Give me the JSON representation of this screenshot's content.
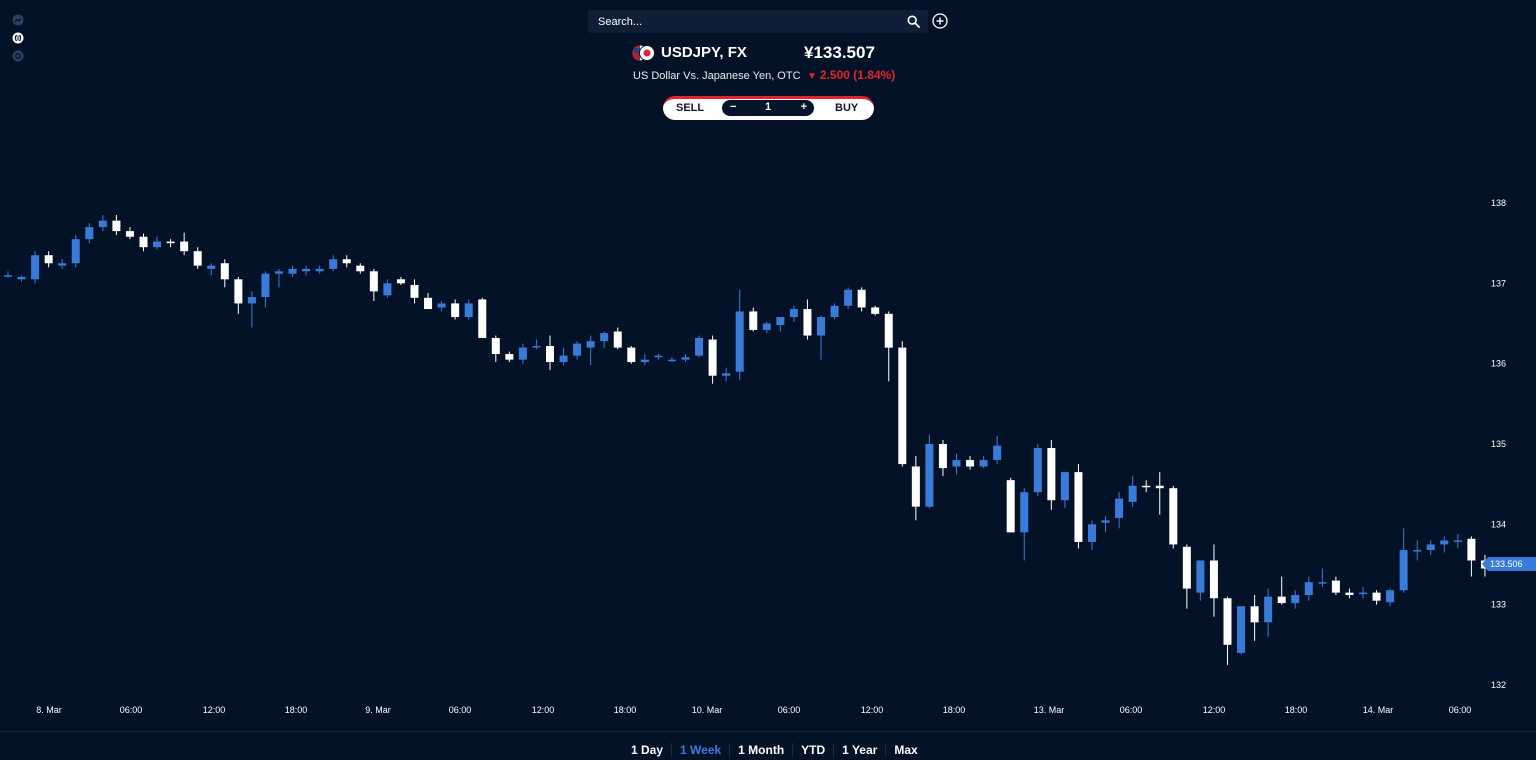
{
  "sidebar": {
    "icons": [
      {
        "name": "chart-style-icon",
        "color": "#2c4260"
      },
      {
        "name": "indicator-icon",
        "color": "#ffffff"
      },
      {
        "name": "settings-icon",
        "color": "#2c4260"
      }
    ]
  },
  "search": {
    "placeholder": "Search..."
  },
  "instrument": {
    "symbol": "USDJPY, FX",
    "description": "US Dollar Vs. Japanese Yen, OTC",
    "price": "¥133.507",
    "change_arrow": "▼",
    "change": "2.500 (1.84%)",
    "flag_icon": "us-jp-flag-icon"
  },
  "trade": {
    "sell_label": "SELL",
    "buy_label": "BUY",
    "minus": "−",
    "plus": "+",
    "quantity": "1"
  },
  "chart_data": {
    "type": "candlestick",
    "symbol": "USDJPY",
    "y_ticks": [
      "138",
      "137",
      "136",
      "135",
      "134",
      "133",
      "132"
    ],
    "ylim": [
      131.8,
      138.3
    ],
    "x_labels": [
      "8. Mar",
      "06:00",
      "12:00",
      "18:00",
      "9. Mar",
      "06:00",
      "12:00",
      "18:00",
      "10. Mar",
      "06:00",
      "12:00",
      "18:00",
      "13. Mar",
      "06:00",
      "12:00",
      "18:00",
      "14. Mar",
      "06:00"
    ],
    "current_price": "133.506",
    "colors": {
      "up": "#3a7ad8",
      "down": "#ffffff",
      "background": "#041228",
      "price_tag": "#3a7ad8"
    },
    "candles": [
      [
        137.1,
        137.15,
        137.07,
        137.1
      ],
      [
        137.05,
        137.1,
        137.02,
        137.08
      ],
      [
        137.05,
        137.4,
        137.0,
        137.35
      ],
      [
        137.35,
        137.4,
        137.2,
        137.25
      ],
      [
        137.22,
        137.3,
        137.18,
        137.25
      ],
      [
        137.25,
        137.6,
        137.2,
        137.55
      ],
      [
        137.55,
        137.75,
        137.5,
        137.7
      ],
      [
        137.7,
        137.85,
        137.65,
        137.78
      ],
      [
        137.78,
        137.85,
        137.6,
        137.65
      ],
      [
        137.65,
        137.7,
        137.55,
        137.58
      ],
      [
        137.58,
        137.62,
        137.4,
        137.45
      ],
      [
        137.45,
        137.58,
        137.42,
        137.52
      ],
      [
        137.52,
        137.55,
        137.45,
        137.5
      ],
      [
        137.52,
        137.63,
        137.35,
        137.4
      ],
      [
        137.4,
        137.45,
        137.18,
        137.22
      ],
      [
        137.18,
        137.25,
        137.1,
        137.22
      ],
      [
        137.25,
        137.3,
        136.95,
        137.05
      ],
      [
        137.05,
        137.08,
        136.62,
        136.75
      ],
      [
        136.75,
        136.9,
        136.45,
        136.83
      ],
      [
        136.83,
        137.15,
        136.7,
        137.12
      ],
      [
        137.12,
        137.18,
        136.95,
        137.15
      ],
      [
        137.12,
        137.22,
        137.08,
        137.18
      ],
      [
        137.15,
        137.22,
        137.1,
        137.18
      ],
      [
        137.15,
        137.22,
        137.12,
        137.18
      ],
      [
        137.18,
        137.35,
        137.15,
        137.3
      ],
      [
        137.3,
        137.35,
        137.2,
        137.25
      ],
      [
        137.22,
        137.25,
        137.12,
        137.15
      ],
      [
        137.15,
        137.18,
        136.78,
        136.9
      ],
      [
        136.85,
        137.05,
        136.82,
        137.0
      ],
      [
        137.05,
        137.08,
        136.98,
        137.0
      ],
      [
        136.98,
        137.05,
        136.75,
        136.82
      ],
      [
        136.82,
        136.88,
        136.7,
        136.68
      ],
      [
        136.7,
        136.78,
        136.65,
        136.75
      ],
      [
        136.75,
        136.8,
        136.55,
        136.58
      ],
      [
        136.58,
        136.8,
        136.55,
        136.75
      ],
      [
        136.8,
        136.82,
        136.35,
        136.32
      ],
      [
        136.32,
        136.35,
        136.02,
        136.12
      ],
      [
        136.12,
        136.15,
        136.02,
        136.05
      ],
      [
        136.05,
        136.25,
        136.0,
        136.2
      ],
      [
        136.22,
        136.3,
        136.18,
        136.22
      ],
      [
        136.22,
        136.35,
        135.92,
        136.02
      ],
      [
        136.02,
        136.2,
        135.98,
        136.1
      ],
      [
        136.1,
        136.28,
        136.05,
        136.25
      ],
      [
        136.2,
        136.35,
        135.98,
        136.28
      ],
      [
        136.28,
        136.4,
        136.2,
        136.38
      ],
      [
        136.4,
        136.45,
        136.18,
        136.2
      ],
      [
        136.2,
        136.22,
        136.0,
        136.02
      ],
      [
        136.02,
        136.12,
        135.98,
        136.05
      ],
      [
        136.08,
        136.12,
        136.05,
        136.1
      ],
      [
        136.05,
        136.08,
        136.02,
        136.05
      ],
      [
        136.05,
        136.12,
        136.02,
        136.08
      ],
      [
        136.1,
        136.35,
        136.08,
        136.32
      ],
      [
        136.3,
        136.35,
        135.75,
        135.85
      ],
      [
        135.85,
        135.95,
        135.78,
        135.88
      ],
      [
        135.9,
        136.92,
        135.8,
        136.65
      ],
      [
        136.65,
        136.7,
        136.4,
        136.42
      ],
      [
        136.42,
        136.52,
        136.38,
        136.5
      ],
      [
        136.48,
        136.58,
        136.4,
        136.58
      ],
      [
        136.58,
        136.72,
        136.52,
        136.68
      ],
      [
        136.68,
        136.8,
        136.3,
        136.35
      ],
      [
        136.35,
        136.6,
        136.05,
        136.58
      ],
      [
        136.58,
        136.75,
        136.55,
        136.72
      ],
      [
        136.72,
        136.95,
        136.68,
        136.92
      ],
      [
        136.92,
        136.95,
        136.65,
        136.7
      ],
      [
        136.7,
        136.72,
        136.6,
        136.62
      ],
      [
        136.62,
        136.65,
        135.78,
        136.2
      ],
      [
        136.2,
        136.28,
        134.72,
        134.75
      ],
      [
        134.72,
        134.85,
        134.05,
        134.22
      ],
      [
        134.22,
        135.12,
        134.2,
        135.0
      ],
      [
        135.0,
        135.05,
        134.6,
        134.7
      ],
      [
        134.72,
        134.88,
        134.62,
        134.8
      ],
      [
        134.8,
        134.85,
        134.68,
        134.72
      ],
      [
        134.72,
        134.85,
        134.7,
        134.8
      ],
      [
        134.8,
        135.1,
        134.75,
        134.98
      ],
      [
        134.55,
        134.58,
        133.9,
        133.9
      ],
      [
        133.9,
        134.45,
        133.55,
        134.4
      ],
      [
        134.4,
        135.0,
        134.35,
        134.95
      ],
      [
        134.95,
        135.05,
        134.18,
        134.3
      ],
      [
        134.3,
        134.65,
        134.2,
        134.65
      ],
      [
        134.65,
        134.75,
        133.7,
        133.78
      ],
      [
        133.78,
        134.05,
        133.68,
        134.0
      ],
      [
        134.02,
        134.1,
        133.9,
        134.05
      ],
      [
        134.08,
        134.4,
        133.95,
        134.32
      ],
      [
        134.28,
        134.6,
        134.22,
        134.48
      ],
      [
        134.48,
        134.55,
        134.4,
        134.47
      ],
      [
        134.48,
        134.65,
        134.12,
        134.45
      ],
      [
        134.45,
        134.48,
        133.7,
        133.75
      ],
      [
        133.72,
        133.75,
        132.95,
        133.2
      ],
      [
        133.15,
        133.55,
        133.05,
        133.55
      ],
      [
        133.55,
        133.75,
        132.85,
        133.08
      ],
      [
        133.08,
        133.1,
        132.25,
        132.5
      ],
      [
        132.4,
        132.92,
        132.38,
        132.98
      ],
      [
        132.98,
        133.12,
        132.55,
        132.78
      ],
      [
        132.78,
        133.2,
        132.6,
        133.1
      ],
      [
        133.1,
        133.35,
        133.0,
        133.02
      ],
      [
        133.02,
        133.18,
        132.95,
        133.12
      ],
      [
        133.12,
        133.35,
        133.05,
        133.28
      ],
      [
        133.28,
        133.45,
        133.22,
        133.28
      ],
      [
        133.3,
        133.35,
        133.12,
        133.15
      ],
      [
        133.15,
        133.2,
        133.08,
        133.12
      ],
      [
        133.15,
        133.22,
        133.08,
        133.15
      ],
      [
        133.15,
        133.18,
        133.0,
        133.05
      ],
      [
        133.03,
        133.2,
        132.98,
        133.18
      ],
      [
        133.18,
        133.95,
        133.15,
        133.68
      ],
      [
        133.68,
        133.8,
        133.55,
        133.68
      ],
      [
        133.68,
        133.8,
        133.62,
        133.75
      ],
      [
        133.75,
        133.85,
        133.65,
        133.8
      ],
      [
        133.8,
        133.88,
        133.7,
        133.8
      ],
      [
        133.82,
        133.85,
        133.35,
        133.55
      ],
      [
        133.55,
        133.62,
        133.35,
        133.45
      ]
    ]
  },
  "ranges": [
    {
      "label": "1 Day",
      "active": false
    },
    {
      "label": "1 Week",
      "active": true
    },
    {
      "label": "1 Month",
      "active": false
    },
    {
      "label": "YTD",
      "active": false
    },
    {
      "label": "1 Year",
      "active": false
    },
    {
      "label": "Max",
      "active": false
    }
  ]
}
